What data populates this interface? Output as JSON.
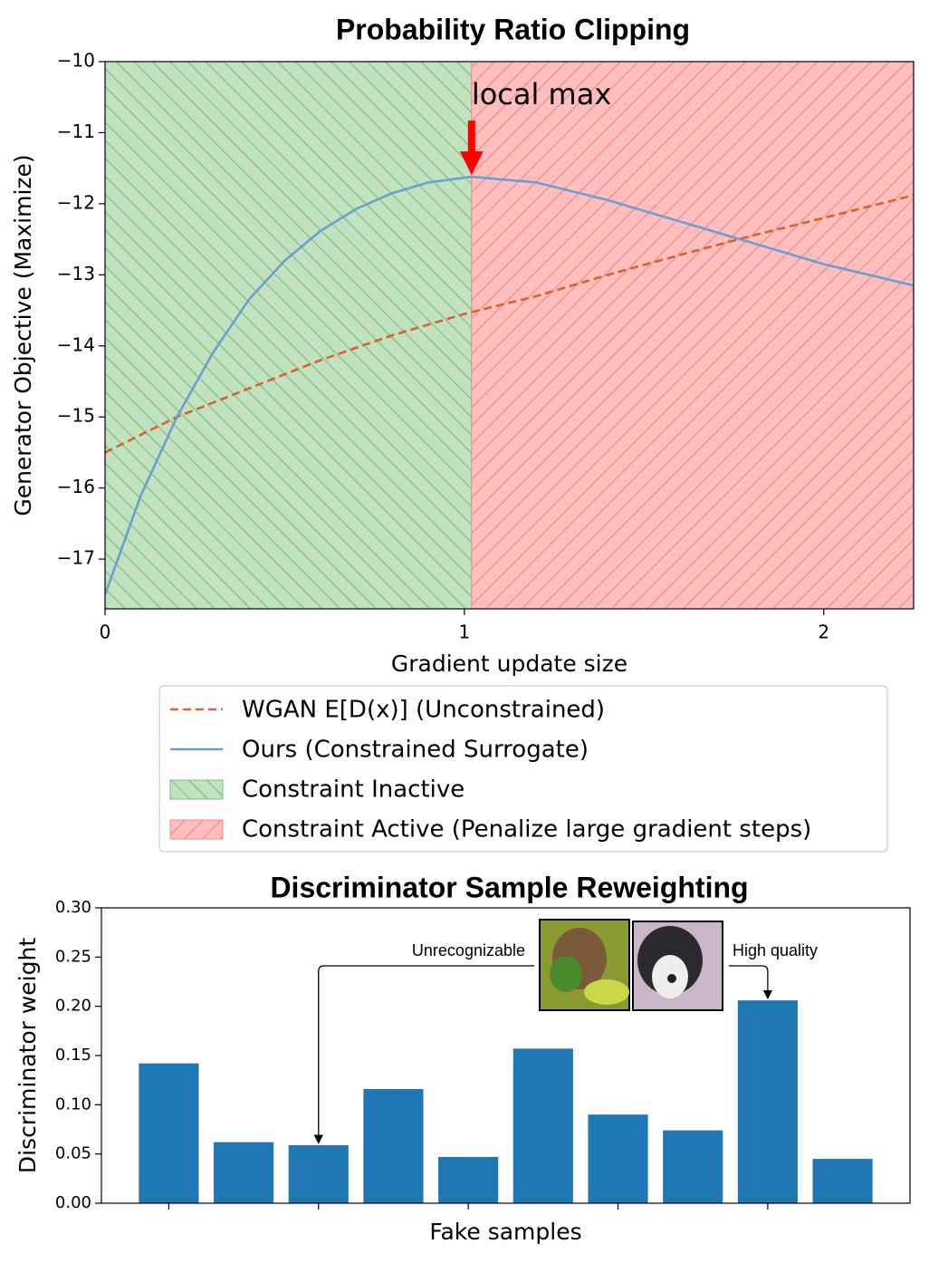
{
  "chart_data": [
    {
      "type": "line",
      "title": "Probability Ratio Clipping",
      "xlabel": "Gradient update size",
      "ylabel": "Generator Objective (Maximize)",
      "xlim": [
        0,
        2.25
      ],
      "ylim": [
        -17.7,
        -10
      ],
      "xticks": [
        0,
        1,
        2
      ],
      "yticks": [
        {
          "value": -10,
          "label": "−10"
        },
        {
          "value": -11,
          "label": "−11"
        },
        {
          "value": -12,
          "label": "−12"
        },
        {
          "value": -13,
          "label": "−13"
        },
        {
          "value": -14,
          "label": "−14"
        },
        {
          "value": -15,
          "label": "−15"
        },
        {
          "value": -16,
          "label": "−16"
        },
        {
          "value": -17,
          "label": "−17"
        }
      ],
      "series": [
        {
          "name": "WGAN E[D(x)] (Unconstrained)",
          "color": "#d9612e",
          "style": "dashed",
          "x": [
            0,
            0.2,
            0.4,
            0.6,
            0.8,
            1.0,
            1.2,
            1.4,
            1.6,
            1.8,
            2.0,
            2.25
          ],
          "values": [
            -15.5,
            -15.0,
            -14.6,
            -14.2,
            -13.85,
            -13.55,
            -13.3,
            -13.0,
            -12.72,
            -12.45,
            -12.2,
            -11.88
          ]
        },
        {
          "name": "Ours (Constrained Surrogate)",
          "color": "#6a9fd4",
          "style": "solid",
          "x": [
            0,
            0.1,
            0.2,
            0.3,
            0.4,
            0.5,
            0.6,
            0.7,
            0.8,
            0.9,
            1.02,
            1.2,
            1.4,
            1.6,
            1.8,
            2.0,
            2.25
          ],
          "values": [
            -17.5,
            -16.1,
            -15.0,
            -14.1,
            -13.35,
            -12.8,
            -12.38,
            -12.07,
            -11.85,
            -11.7,
            -11.62,
            -11.7,
            -11.95,
            -12.25,
            -12.55,
            -12.85,
            -13.15
          ]
        }
      ],
      "regions": [
        {
          "name": "Constraint Inactive",
          "color": "#c2e1bf",
          "hatch_color": "#7fbf7a",
          "hatch": "\\\\",
          "x": [
            0,
            1.02
          ]
        },
        {
          "name": "Constraint Active (Penalize large gradient steps)",
          "color": "#ffbebe",
          "hatch_color": "#f08a8a",
          "hatch": "//",
          "x": [
            1.02,
            2.25
          ]
        }
      ],
      "annotations": [
        {
          "text": "local max",
          "color": "#ff0000"
        }
      ],
      "legend": "below"
    },
    {
      "type": "bar",
      "title": "Discriminator Sample Reweighting",
      "xlabel": "Fake samples",
      "ylabel": "Discriminator weight",
      "categories": [
        null,
        null,
        null,
        null,
        null,
        null,
        null,
        null,
        null,
        null
      ],
      "values": [
        0.142,
        0.062,
        0.059,
        0.116,
        0.047,
        0.157,
        0.09,
        0.074,
        0.206,
        0.045
      ],
      "color": "#1f77b4",
      "ylim": [
        0,
        0.3
      ],
      "yticks": [
        {
          "value": 0,
          "label": "0.00"
        },
        0.05,
        {
          "value": 0.1,
          "label": "0.10"
        },
        0.15,
        {
          "value": 0.2,
          "label": "0.20"
        },
        0.25,
        {
          "value": 0.3,
          "label": "0.30"
        }
      ],
      "annotations": [
        {
          "text": "Unrecognizable"
        },
        {
          "text": "High quality"
        }
      ]
    }
  ]
}
